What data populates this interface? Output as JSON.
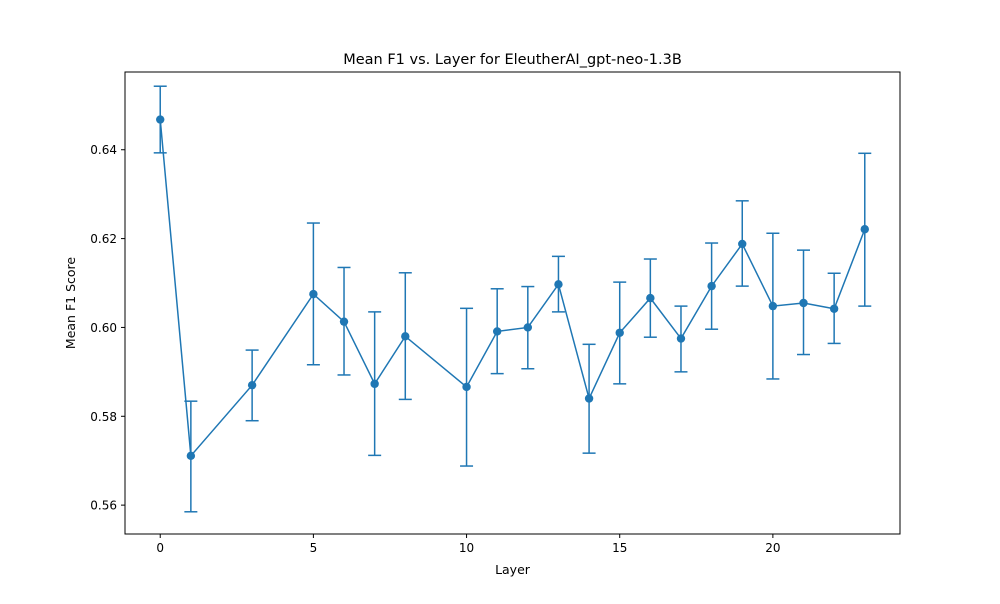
{
  "chart_data": {
    "type": "line",
    "title": "Mean F1 vs. Layer for EleutherAI_gpt-neo-1.3B",
    "xlabel": "Layer",
    "ylabel": "Mean F1 Score",
    "xlim": [
      -1.15,
      24.15
    ],
    "ylim": [
      0.5535,
      0.6575
    ],
    "xticks": [
      0,
      5,
      10,
      15,
      20
    ],
    "yticks": [
      0.56,
      0.58,
      0.6,
      0.62,
      0.64
    ],
    "ytick_labels": [
      "0.56",
      "0.58",
      "0.60",
      "0.62",
      "0.64"
    ],
    "grid": false,
    "legend": "none",
    "series": [
      {
        "color": "#1f77b4",
        "marker": "circle",
        "x": [
          0,
          1,
          3,
          5,
          6,
          7,
          8,
          10,
          11,
          12,
          13,
          14,
          15,
          16,
          17,
          18,
          19,
          20,
          21,
          22,
          23
        ],
        "y": [
          0.6468,
          0.5711,
          0.587,
          0.6075,
          0.6013,
          0.5873,
          0.598,
          0.5866,
          0.5991,
          0.6,
          0.6097,
          0.584,
          0.5988,
          0.6066,
          0.5975,
          0.6093,
          0.6188,
          0.6048,
          0.6055,
          0.6042,
          0.6221
        ],
        "err_low": [
          0.6393,
          0.5585,
          0.579,
          0.5916,
          0.5893,
          0.5712,
          0.5838,
          0.5688,
          0.5896,
          0.5907,
          0.6035,
          0.5717,
          0.5873,
          0.5978,
          0.59,
          0.5996,
          0.6093,
          0.5884,
          0.5939,
          0.5964,
          0.6048
        ],
        "err_high": [
          0.6543,
          0.5834,
          0.5949,
          0.6235,
          0.6135,
          0.6035,
          0.6123,
          0.6043,
          0.6087,
          0.6092,
          0.616,
          0.5962,
          0.6102,
          0.6154,
          0.6048,
          0.619,
          0.6285,
          0.6212,
          0.6174,
          0.6122,
          0.6392
        ]
      }
    ]
  }
}
